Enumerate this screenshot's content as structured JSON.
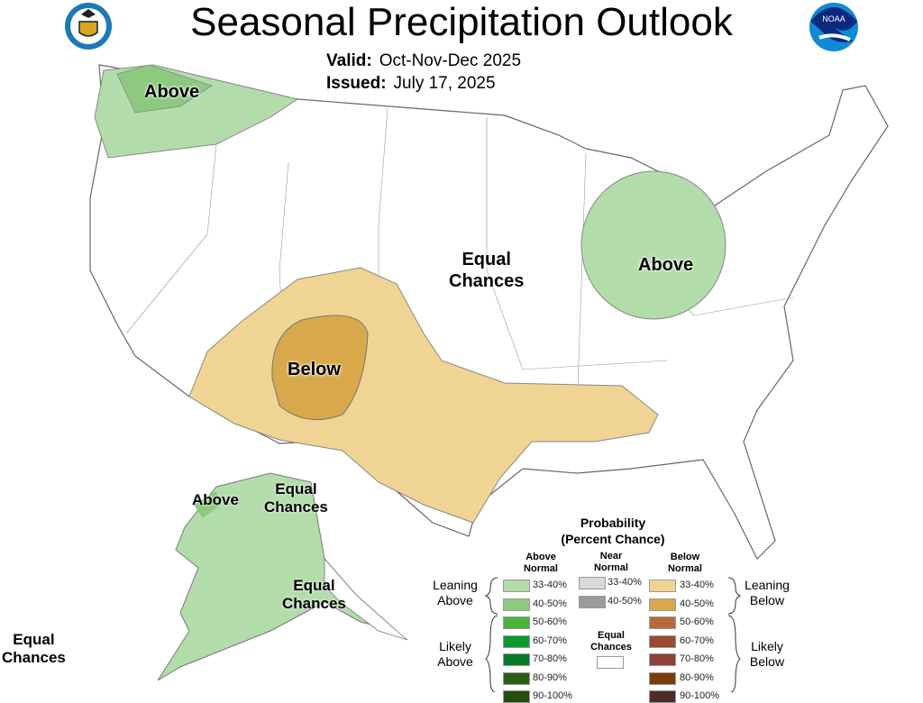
{
  "header": {
    "title": "Seasonal Precipitation Outlook",
    "valid_label": "Valid:",
    "valid_value": "Oct-Nov-Dec 2025",
    "issued_label": "Issued:",
    "issued_value": "July 17, 2025",
    "logo_left": "Department of Commerce seal",
    "logo_right": "NOAA"
  },
  "map_labels": {
    "nw_above": "Above",
    "ohio_above": "Above",
    "below": "Below",
    "equal1": "Equal",
    "equal2": "Chances",
    "ak_above": "Above",
    "ak_equal_ne1": "Equal",
    "ak_equal_ne2": "Chances",
    "ak_equal_s1": "Equal",
    "ak_equal_s2": "Chances",
    "hi_equal1": "Equal",
    "hi_equal2": "Chances"
  },
  "legend": {
    "title1": "Probability",
    "title2": "(Percent Chance)",
    "above_header": [
      "Above",
      "Normal"
    ],
    "near_header": [
      "Near",
      "Normal"
    ],
    "below_header": [
      "Below",
      "Normal"
    ],
    "leaning_above": [
      "Leaning",
      "Above"
    ],
    "likely_above": [
      "Likely",
      "Above"
    ],
    "leaning_below": [
      "Leaning",
      "Below"
    ],
    "likely_below": [
      "Likely",
      "Below"
    ],
    "equal_chances": [
      "Equal",
      "Chances"
    ],
    "above": [
      {
        "range": "33-40%",
        "color": "#b3dcab"
      },
      {
        "range": "40-50%",
        "color": "#8dc97e"
      },
      {
        "range": "50-60%",
        "color": "#48b23a"
      },
      {
        "range": "60-70%",
        "color": "#0a9a2e"
      },
      {
        "range": "70-80%",
        "color": "#077a28"
      },
      {
        "range": "80-90%",
        "color": "#2a5e14"
      },
      {
        "range": "90-100%",
        "color": "#264d0e"
      }
    ],
    "near": [
      {
        "range": "33-40%",
        "color": "#d9d9d9"
      },
      {
        "range": "40-50%",
        "color": "#9b9b9b"
      }
    ],
    "below": [
      {
        "range": "33-40%",
        "color": "#f0d493"
      },
      {
        "range": "40-50%",
        "color": "#d8a84a"
      },
      {
        "range": "50-60%",
        "color": "#b8693a"
      },
      {
        "range": "60-70%",
        "color": "#9a4a2e"
      },
      {
        "range": "70-80%",
        "color": "#8f4038"
      },
      {
        "range": "80-90%",
        "color": "#7a3e0a"
      },
      {
        "range": "90-100%",
        "color": "#4e2c28"
      }
    ]
  }
}
